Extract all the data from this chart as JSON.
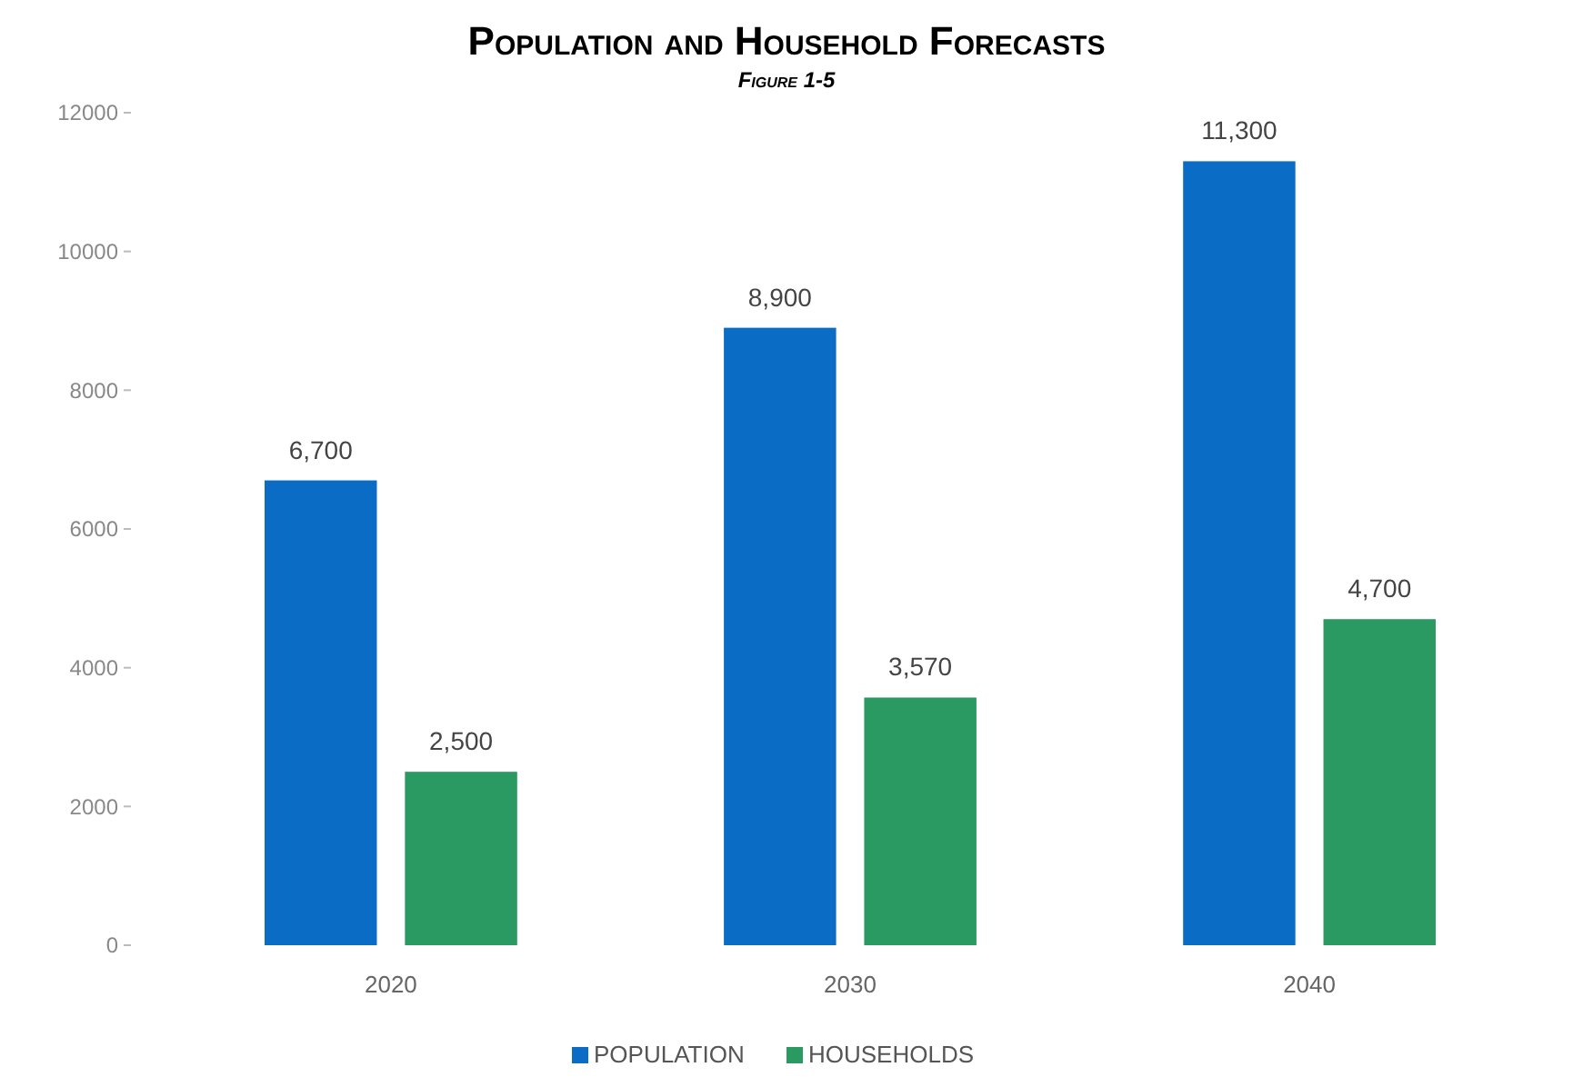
{
  "chart_data": {
    "type": "bar",
    "title": "Population and Household Forecasts",
    "subtitle": "Figure 1-5",
    "categories": [
      "2020",
      "2030",
      "2040"
    ],
    "series": [
      {
        "name": "POPULATION",
        "color": "#0a6cc4",
        "values": [
          6700,
          8900,
          11300
        ],
        "value_labels": [
          "6,700",
          "8,900",
          "11,300"
        ]
      },
      {
        "name": "HOUSEHOLDS",
        "color": "#2a9a62",
        "values": [
          2500,
          3570,
          4700
        ],
        "value_labels": [
          "2,500",
          "3,570",
          "4,700"
        ]
      }
    ],
    "ylim": [
      0,
      12000
    ],
    "yticks": [
      0,
      2000,
      4000,
      6000,
      8000,
      10000,
      12000
    ],
    "grid": false,
    "legend": "bottom"
  }
}
